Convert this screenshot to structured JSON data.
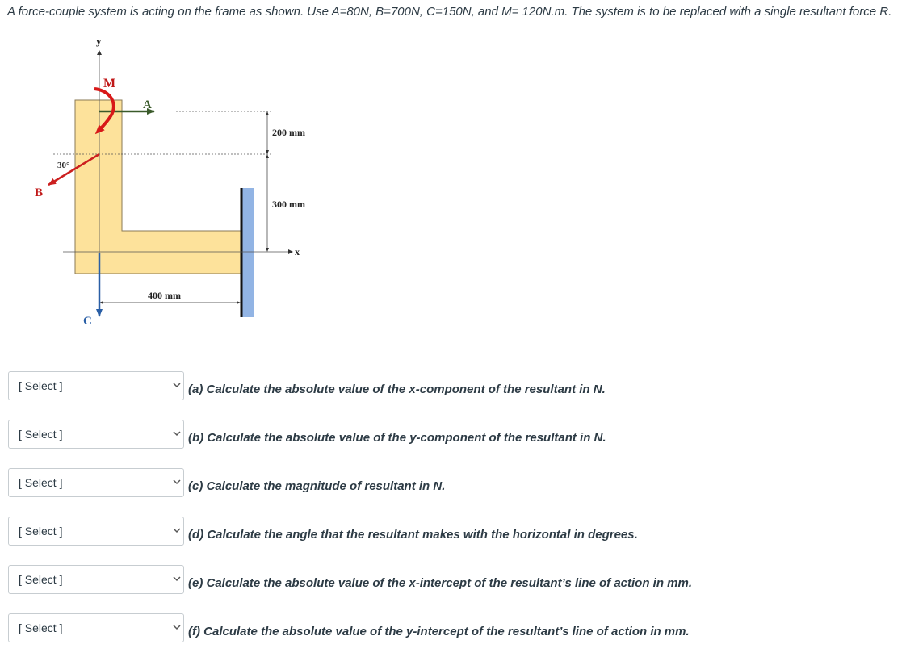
{
  "question": {
    "text": "A force-couple system is acting on the frame as shown. Use A=80N, B=700N, C=150N, and M= 120N.m. The system is to be replaced with a single resultant force R."
  },
  "figure": {
    "labels": {
      "y_axis": "y",
      "x_axis": "x",
      "moment": "M",
      "force_a": "A",
      "force_b": "B",
      "force_c": "C",
      "angle": "30°",
      "dim_200": "200 mm",
      "dim_300": "300 mm",
      "dim_400": "400 mm"
    },
    "colors": {
      "frame_fill": "#fde29b",
      "frame_stroke": "#8a7a55",
      "wall": "#92b4e4",
      "force_a": "#3a5a2a",
      "force_b": "#cc1f1f",
      "force_c": "#2a5fa6",
      "moment": "#d81818",
      "label_red": "#c01818",
      "label_green": "#3a5a2a",
      "label_blue": "#2a5fa6"
    }
  },
  "questions": [
    {
      "select_value": "[ Select ]",
      "text": "(a) Calculate the absolute value of the x-component of the resultant in N."
    },
    {
      "select_value": "[ Select ]",
      "text": "(b) Calculate the absolute value of the y-component of the resultant in N."
    },
    {
      "select_value": "[ Select ]",
      "text": "(c) Calculate the magnitude of resultant in N."
    },
    {
      "select_value": "[ Select ]",
      "text": "(d) Calculate the angle that the resultant makes with the horizontal in degrees."
    },
    {
      "select_value": "[ Select ]",
      "text": "(e) Calculate the absolute value of the x-intercept of the resultant’s line of action in mm."
    },
    {
      "select_value": "[ Select ]",
      "text": "(f) Calculate the absolute value of the y-intercept of the resultant’s line of action in mm."
    }
  ]
}
